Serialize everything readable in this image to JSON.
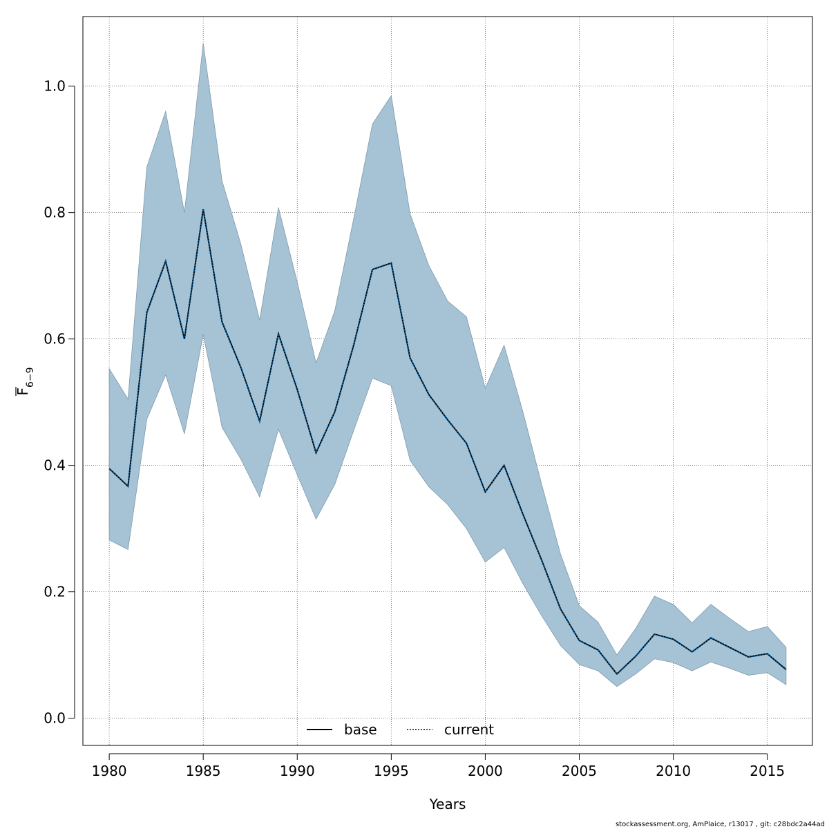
{
  "chart_data": {
    "type": "line",
    "xlabel": "Years",
    "ylabel": {
      "main": "F",
      "sub": "6−9"
    },
    "xlim": [
      1978.6,
      2017.4
    ],
    "ylim": [
      -0.043,
      1.11
    ],
    "x_ticks": [
      1980,
      1985,
      1990,
      1995,
      2000,
      2005,
      2010,
      2015
    ],
    "y_ticks": [
      0.0,
      0.2,
      0.4,
      0.6,
      0.8,
      1.0
    ],
    "x_tick_labels": [
      "1980",
      "1985",
      "1990",
      "1995",
      "2000",
      "2005",
      "2010",
      "2015"
    ],
    "y_tick_labels": [
      "0.0",
      "0.2",
      "0.4",
      "0.6",
      "0.8",
      "1.0"
    ],
    "grid": true,
    "legend_placement": "bottom",
    "x": [
      1980,
      1981,
      1982,
      1983,
      1984,
      1985,
      1986,
      1987,
      1988,
      1989,
      1990,
      1991,
      1992,
      1993,
      1994,
      1995,
      1996,
      1997,
      1998,
      1999,
      2000,
      2001,
      2002,
      2003,
      2004,
      2005,
      2006,
      2007,
      2008,
      2009,
      2010,
      2011,
      2012,
      2013,
      2014,
      2015,
      2016
    ],
    "series": [
      {
        "name": "base",
        "style": "solid",
        "color": "#000000",
        "values": [
          0.395,
          0.367,
          0.642,
          0.723,
          0.6,
          0.805,
          0.627,
          0.555,
          0.47,
          0.608,
          0.52,
          0.42,
          0.485,
          0.59,
          0.71,
          0.72,
          0.57,
          0.512,
          0.472,
          0.435,
          0.358,
          0.4,
          0.323,
          0.25,
          0.173,
          0.123,
          0.108,
          0.07,
          0.098,
          0.133,
          0.125,
          0.105,
          0.127,
          0.112,
          0.097,
          0.102,
          0.077
        ]
      },
      {
        "name": "current",
        "style": "dotted",
        "color": "#005a9c",
        "values": [
          0.395,
          0.367,
          0.642,
          0.723,
          0.6,
          0.805,
          0.627,
          0.555,
          0.47,
          0.608,
          0.52,
          0.42,
          0.485,
          0.59,
          0.71,
          0.72,
          0.57,
          0.512,
          0.472,
          0.435,
          0.358,
          0.4,
          0.323,
          0.25,
          0.173,
          0.123,
          0.108,
          0.07,
          0.098,
          0.133,
          0.125,
          0.105,
          0.127,
          0.112,
          0.097,
          0.102,
          0.077
        ]
      }
    ],
    "confidence_band": {
      "color": "#a5c3d5",
      "upper": [
        0.553,
        0.505,
        0.872,
        0.96,
        0.8,
        1.068,
        0.85,
        0.75,
        0.63,
        0.808,
        0.69,
        0.562,
        0.645,
        0.79,
        0.94,
        0.985,
        0.798,
        0.716,
        0.66,
        0.635,
        0.522,
        0.59,
        0.485,
        0.37,
        0.26,
        0.178,
        0.152,
        0.1,
        0.142,
        0.193,
        0.18,
        0.151,
        0.18,
        0.158,
        0.137,
        0.145,
        0.112
      ],
      "lower": [
        0.282,
        0.267,
        0.473,
        0.543,
        0.45,
        0.607,
        0.46,
        0.41,
        0.35,
        0.457,
        0.385,
        0.315,
        0.37,
        0.455,
        0.538,
        0.526,
        0.408,
        0.366,
        0.338,
        0.3,
        0.247,
        0.27,
        0.213,
        0.162,
        0.115,
        0.085,
        0.075,
        0.05,
        0.07,
        0.094,
        0.088,
        0.075,
        0.089,
        0.079,
        0.068,
        0.072,
        0.053
      ]
    }
  },
  "footer": "stockassessment.org, AmPlaice, r13017 , git: c28bdc2a44ad"
}
